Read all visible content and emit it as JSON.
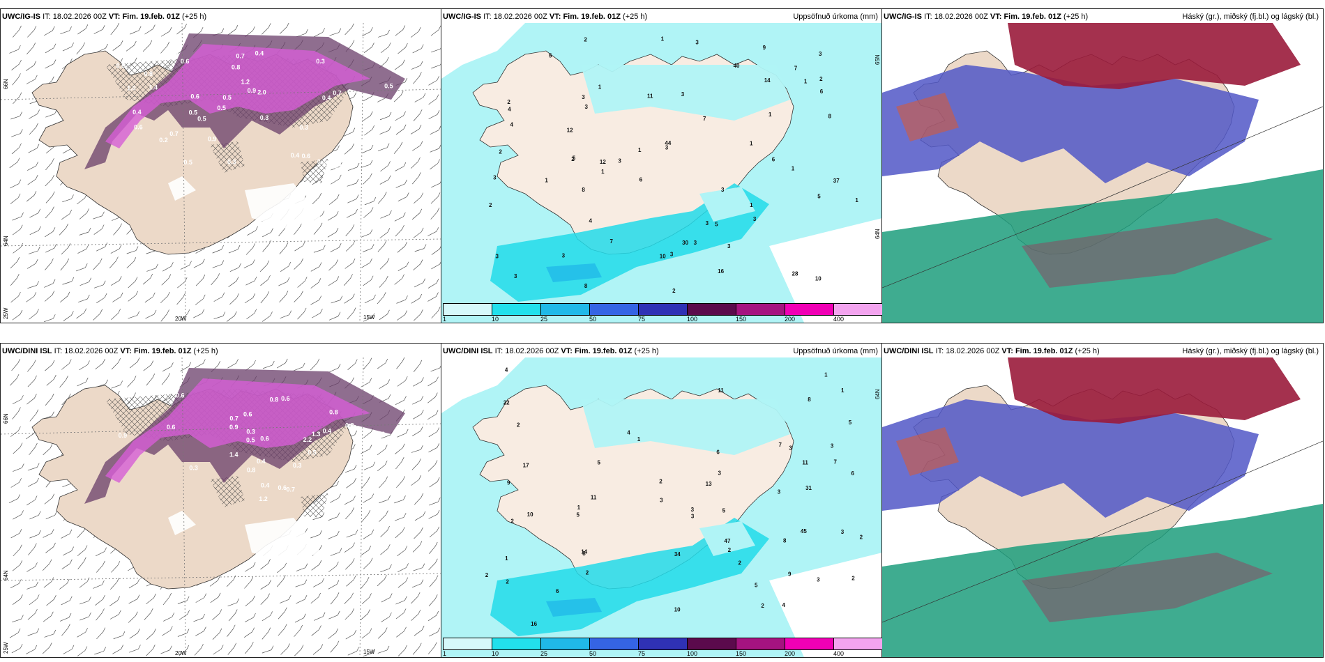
{
  "colors": {
    "land": "#ecd9c8",
    "land_pale": "#f8ece2",
    "sea": "#ffffff",
    "precip_purple": "#d65ed6",
    "precip_dark": "#6a3d6a",
    "aqua_light": "#b0f4f6",
    "aqua": "#22dbe9",
    "cloud_high": "#9a1b3b",
    "cloud_mid": "#5157c7",
    "cloud_low": "#1d9e7c"
  },
  "panels": [
    {
      "id": "tl",
      "model": "UWC/IG-IS",
      "it_label": "IT:",
      "it_value": "18.02.2026 00Z",
      "vt_label": "VT:",
      "vt_value": "Fim. 19.feb. 01Z",
      "lead": "(+25 h)",
      "right_title": "",
      "axis_labels": [
        "66N",
        "64N",
        "25W",
        "20W",
        "15W"
      ],
      "labels": [
        "0.2",
        "0.4",
        "0.3",
        "0.4",
        "0.6",
        "1.0",
        "0.3",
        "0.5",
        "0.7",
        "2.0",
        "0.8",
        "0.2",
        "0.3",
        "0.3",
        "0.4",
        "0.5",
        "1.2",
        "0.9",
        "0.8",
        "1.4",
        "0.8",
        "0.5",
        "0.6",
        "0.3",
        "0.5",
        "0.7",
        "0.6",
        "0.5",
        "0.4",
        "0.6",
        "0.6",
        "0.5",
        "0.8",
        "1.0",
        "0.9",
        "0.7",
        "0.6"
      ]
    },
    {
      "id": "tc",
      "model": "UWC/IG-IS",
      "it_label": "IT:",
      "it_value": "18.02.2026 00Z",
      "vt_label": "VT:",
      "vt_value": "Fim. 19.feb. 01Z",
      "lead": "(+25 h)",
      "right_title": "Uppsöfnuð úrkoma (mm)",
      "axis_labels": [
        "65N",
        "64N"
      ],
      "labels": [
        "3",
        "3",
        "3",
        "3",
        "3",
        "3",
        "3",
        "3",
        "3",
        "5",
        "6",
        "5",
        "4",
        "3",
        "3",
        "7",
        "6",
        "8",
        "7",
        "8",
        "9",
        "5",
        "3",
        "7",
        "4",
        "3",
        "3",
        "10",
        "3",
        "1",
        "1",
        "1",
        "2",
        "2",
        "2",
        "4",
        "3",
        "1",
        "2",
        "1",
        "1",
        "1",
        "1",
        "2",
        "2",
        "1",
        "1",
        "1",
        "3",
        "2",
        "8",
        "12",
        "11",
        "10",
        "16",
        "28",
        "37",
        "44",
        "30",
        "14",
        "12",
        "6",
        "40",
        "5"
      ],
      "colorbar": [
        "1",
        "10",
        "25",
        "50",
        "75",
        "100",
        "150",
        "200",
        "400"
      ]
    },
    {
      "id": "tr",
      "model": "UWC/IG-IS",
      "it_label": "IT:",
      "it_value": "18.02.2026 00Z",
      "vt_label": "VT:",
      "vt_value": "Fim. 19.feb. 01Z",
      "lead": "(+25 h)",
      "right_title": "Háský (gr.), miðský (fj.bl.) og lágský (bl.)"
    },
    {
      "id": "bl",
      "model": "UWC/DINI ISL",
      "it_label": "IT:",
      "it_value": "18.02.2026 00Z",
      "vt_label": "VT:",
      "vt_value": "Fim. 19.feb. 01Z",
      "lead": "(+25 h)",
      "right_title": "",
      "axis_labels": [
        "66N",
        "64N",
        "25W",
        "20W",
        "15W"
      ],
      "labels": [
        "0.5",
        "0.7",
        "0.6",
        "0.3",
        "0.2",
        "0.5",
        "0.8",
        "0.8",
        "0.9",
        "1.3",
        "0.8",
        "2.2",
        "1.4",
        "1.2",
        "0.6",
        "0.6",
        "0.5",
        "0.4",
        "0.6",
        "0.7",
        "0.4",
        "0.3",
        "0.9",
        "0.3",
        "0.6",
        "0.8",
        "0.4",
        "0.5",
        "0.6"
      ]
    },
    {
      "id": "bc",
      "model": "UWC/DINI ISL",
      "it_label": "IT:",
      "it_value": "18.02.2026 00Z",
      "vt_label": "VT:",
      "vt_value": "Fim. 19.feb. 01Z",
      "lead": "(+25 h)",
      "right_title": "Uppsöfnuð úrkoma (mm)",
      "axis_labels": [
        "64N"
      ],
      "labels": [
        "2",
        "2",
        "2",
        "4",
        "2",
        "1",
        "8",
        "6",
        "7",
        "9",
        "3",
        "4",
        "5",
        "10",
        "6",
        "2",
        "2",
        "3",
        "8",
        "3",
        "4",
        "9",
        "2",
        "1",
        "1",
        "1",
        "3",
        "5",
        "3",
        "3",
        "2",
        "2",
        "8",
        "1",
        "3",
        "2",
        "3",
        "5",
        "3",
        "2",
        "7",
        "14",
        "11",
        "13",
        "10",
        "16",
        "22",
        "31",
        "45",
        "34",
        "47",
        "17",
        "11",
        "6",
        "5",
        "5",
        "11"
      ],
      "colorbar": [
        "1",
        "10",
        "25",
        "50",
        "75",
        "100",
        "150",
        "200",
        "400"
      ]
    },
    {
      "id": "br",
      "model": "UWC/DINI ISL",
      "it_label": "IT:",
      "it_value": "18.02.2026 00Z",
      "vt_label": "VT:",
      "vt_value": "Fim. 19.feb. 01Z",
      "lead": "(+25 h)",
      "right_title": "Háský (gr.), miðský (fj.bl.) og lágský (bl.)"
    }
  ],
  "colorbar_colors": [
    "#d6f9fb",
    "#22e0ec",
    "#20b9e8",
    "#3564e4",
    "#2f31b5",
    "#5b0a4c",
    "#a51380",
    "#f000b5",
    "#f3a4ef"
  ]
}
